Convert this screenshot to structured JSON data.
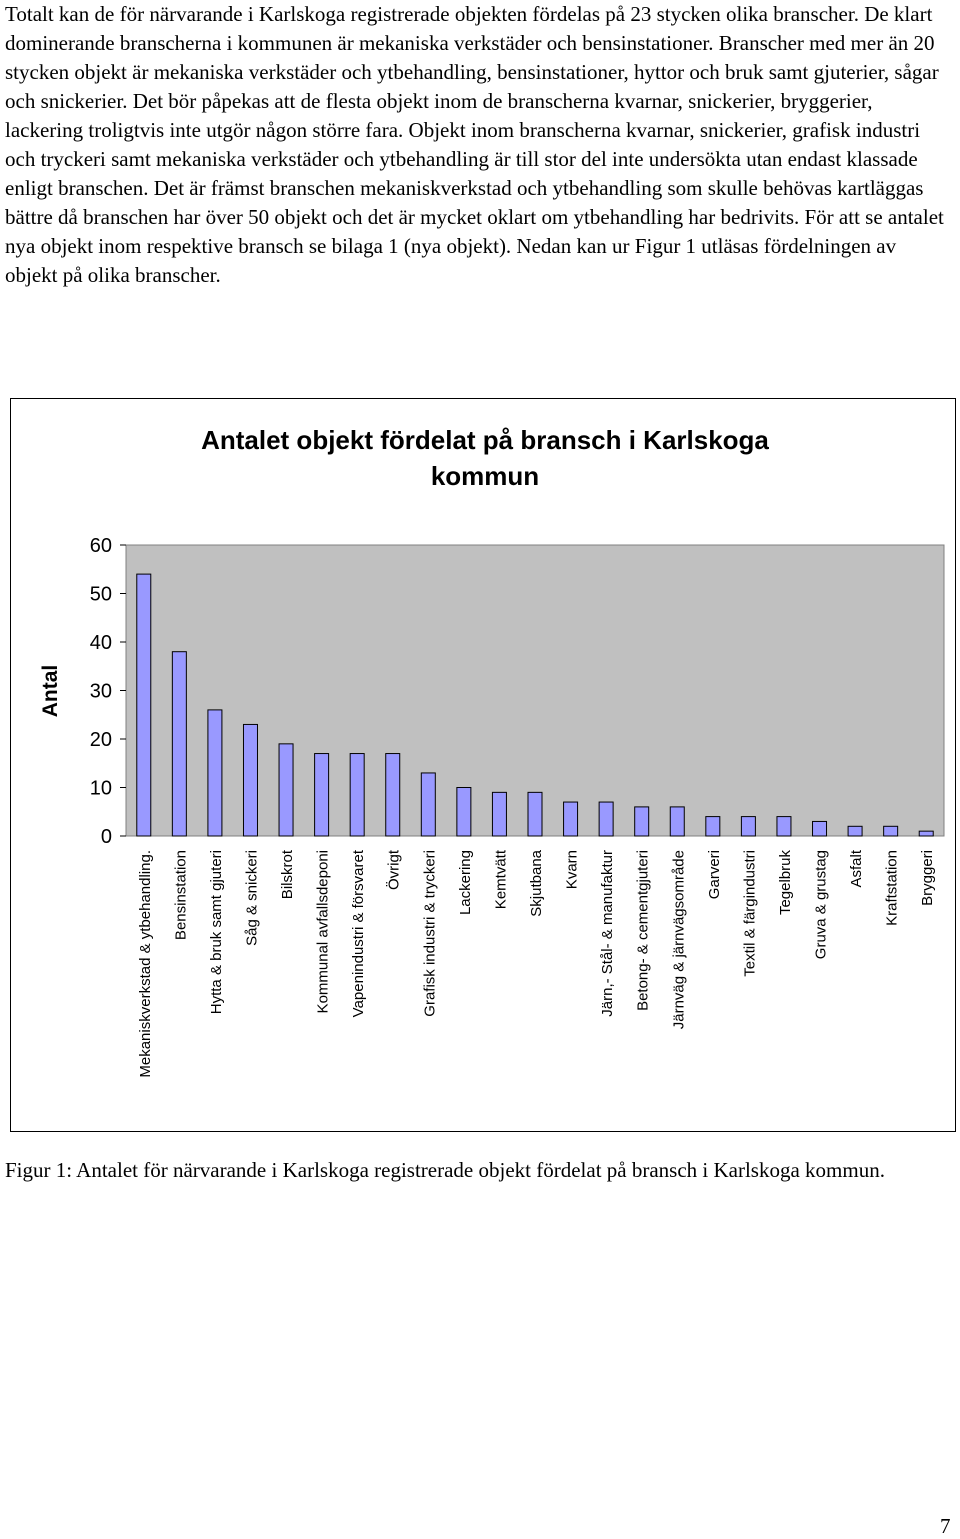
{
  "paragraph": "Totalt kan de för närvarande i Karlskoga registrerade objekten fördelas på 23 stycken olika branscher. De klart dominerande branscherna i kommunen är mekaniska verkstäder och bensinstationer. Branscher med mer än 20 stycken objekt är mekaniska verkstäder och ytbehandling, bensinstationer, hyttor och bruk samt gjuterier, sågar och snickerier. Det bör påpekas att de flesta objekt inom de branscherna kvarnar, snickerier, bryggerier, lackering troligtvis inte utgör någon större fara. Objekt inom branscherna kvarnar, snickerier, grafisk industri och tryckeri samt mekaniska verkstäder och ytbehandling är till stor del inte undersökta utan endast klassade enligt branschen. Det är främst branschen mekaniskverkstad och ytbehandling som skulle behövas kartläggas bättre då branschen har över 50 objekt och det är mycket oklart om ytbehandling har bedrivits. För att se antalet nya objekt inom respektive bransch se bilaga 1 (nya objekt). Nedan kan ur Figur 1 utläsas fördelningen av objekt på olika branscher.",
  "caption": "Figur 1: Antalet för närvarande i Karlskoga registrerade objekt fördelat på bransch i Karlskoga kommun.",
  "page_number": "7",
  "colors": {
    "bar_fill": "#9999ff",
    "plot_background": "#c0c0c0"
  },
  "chart_data": {
    "type": "bar",
    "title_lines": [
      "Antalet objekt fördelat på bransch i Karlskoga",
      "kommun"
    ],
    "ylabel": "Antal",
    "xlabel": "",
    "ylim": [
      0,
      60
    ],
    "yticks": [
      0,
      10,
      20,
      30,
      40,
      50,
      60
    ],
    "grid": false,
    "categories": [
      "Mekaniskverkstad & ytbehandling.",
      "Bensinstation",
      "Hytta & bruk samt gjuteri",
      "Såg & snickeri",
      "Bilskrot",
      "Kommunal avfallsdeponi",
      "Vapenindustri & försvaret",
      "Övrigt",
      "Grafisk industri & tryckeri",
      "Lackering",
      "Kemtvätt",
      "Skjutbana",
      "Kvarn",
      "Järn,- Stål- & manufaktur",
      "Betong- & cementgjuteri",
      "Järnväg & järnvägsområde",
      "Garveri",
      "Textil & färgindustri",
      "Tegelbruk",
      "Gruva & grustag",
      "Asfalt",
      "Kraftstation",
      "Bryggeri"
    ],
    "values": [
      54,
      38,
      26,
      23,
      19,
      17,
      17,
      17,
      13,
      10,
      9,
      9,
      7,
      7,
      6,
      6,
      4,
      4,
      4,
      3,
      2,
      2,
      1
    ]
  }
}
